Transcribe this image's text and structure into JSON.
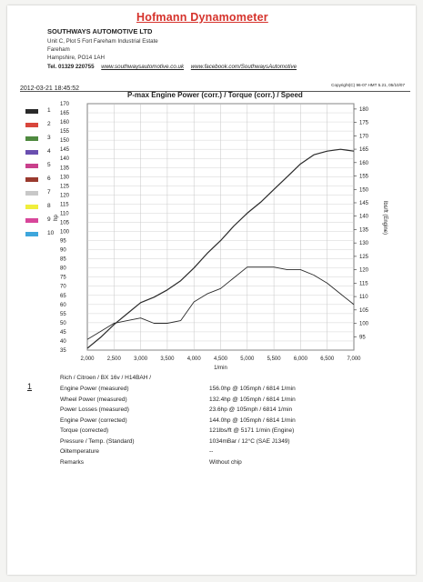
{
  "header": {
    "title": "Hofmann Dynamometer",
    "company": "SOUTHWAYS AUTOMOTIVE LTD",
    "address": [
      "Unit C, Plot 5 Fort Fareham Industrial Estate",
      "Fareham",
      "Hampshire, PO14 1AH"
    ],
    "tel_label": "Tel.",
    "tel": "01329 220755",
    "website": "www.southwaysautomotive.co.uk",
    "facebook": "www.facebook.com/SouthwaysAutomotive"
  },
  "report": {
    "datetime": "2012-03-21  18:45:52",
    "copyright": "Copyright(C) 96-07 HMT 5.21, 05/10/07"
  },
  "legend": {
    "items": [
      {
        "number": "1",
        "color": "#2a2a2a"
      },
      {
        "number": "2",
        "color": "#d8463c"
      },
      {
        "number": "3",
        "color": "#4f8a40"
      },
      {
        "number": "4",
        "color": "#6a4fb0"
      },
      {
        "number": "5",
        "color": "#c9408c"
      },
      {
        "number": "6",
        "color": "#9a3a2e"
      },
      {
        "number": "7",
        "color": "#c8c8c8"
      },
      {
        "number": "8",
        "color": "#f0ee3c"
      },
      {
        "number": "9",
        "color": "#d8469a"
      },
      {
        "number": "10",
        "color": "#3ea6dc"
      }
    ]
  },
  "chart_data": {
    "type": "line",
    "title": "P-max Engine Power (corr.) / Torque (corr.) / Speed",
    "xlabel": "1/min",
    "ylabel": "hp",
    "y2label": "lbs/ft (Engine)",
    "xlim": [
      2000,
      7000
    ],
    "ylim": [
      35,
      170
    ],
    "y2lim": [
      90,
      182
    ],
    "x_ticks": [
      "2,000",
      "2,500",
      "3,000",
      "3,500",
      "4,000",
      "4,500",
      "5,000",
      "5,500",
      "6,000",
      "6,500",
      "7,000"
    ],
    "y_ticks": [
      "35",
      "40",
      "45",
      "50",
      "55",
      "60",
      "65",
      "70",
      "75",
      "80",
      "85",
      "90",
      "95",
      "100",
      "105",
      "110",
      "115",
      "120",
      "125",
      "130",
      "135",
      "140",
      "145",
      "150",
      "155",
      "160",
      "165",
      "170"
    ],
    "y2_ticks": [
      "95",
      "100",
      "105",
      "110",
      "115",
      "120",
      "125",
      "130",
      "135",
      "140",
      "145",
      "150",
      "155",
      "160",
      "165",
      "170",
      "175",
      "180"
    ],
    "grid": true,
    "series": [
      {
        "axis": "left",
        "color": "#2a2a2a",
        "x": [
          2000,
          2250,
          2500,
          2750,
          3000,
          3250,
          3500,
          3750,
          4000,
          4250,
          4500,
          4750,
          5000,
          5250,
          5500,
          5750,
          6000,
          6250,
          6500,
          6750,
          7000
        ],
        "y": [
          36,
          42,
          49,
          55,
          61,
          64,
          68,
          73,
          80,
          88,
          95,
          103,
          110,
          116,
          123,
          130,
          137,
          142,
          144,
          145,
          144
        ]
      },
      {
        "axis": "right",
        "color": "#2a2a2a",
        "x": [
          2000,
          2250,
          2500,
          2750,
          3000,
          3250,
          3500,
          3750,
          4000,
          4250,
          4500,
          4750,
          5000,
          5250,
          5500,
          5750,
          6000,
          6250,
          6500,
          6750,
          7000
        ],
        "y": [
          94,
          97,
          100,
          101,
          102,
          100,
          100,
          101,
          108,
          111,
          113,
          117,
          121,
          121,
          121,
          120,
          120,
          118,
          115,
          111,
          107
        ]
      }
    ]
  },
  "results": {
    "index": "1",
    "vehicle": "Rich / Citroen / BX 16v / H14BAH /",
    "rows": [
      {
        "label": "Engine Power (measured)",
        "value": "156.0hp @ 105mph / 6814 1/min"
      },
      {
        "label": "Wheel Power (measured)",
        "value": "132.4hp @ 105mph / 6814 1/min"
      },
      {
        "label": "Power Losses (measured)",
        "value": "23.6hp @ 105mph / 6814 1/min"
      },
      {
        "label": "Engine Power (corrected)",
        "value": "144.0hp @ 105mph / 6814 1/min"
      },
      {
        "label": "Torque (corrected)",
        "value": "121lbs/ft @ 5171 1/min (Engine)"
      },
      {
        "label": "Pressure / Temp. (Standard)",
        "value": "1034mBar / 12°C   (SAE J1349)"
      },
      {
        "label": "Oiltemperature",
        "value": "--"
      },
      {
        "label": "Remarks",
        "value": "Without chip"
      }
    ]
  }
}
